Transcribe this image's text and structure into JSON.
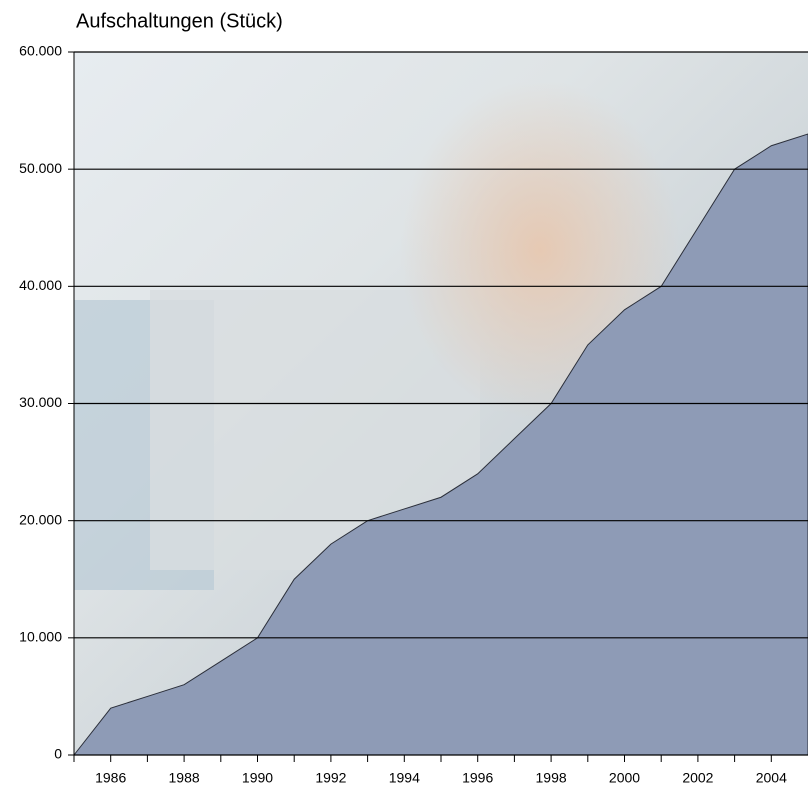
{
  "chart_data": {
    "type": "area",
    "title": "Aufschaltungen (Stück)",
    "x": [
      1985,
      1986,
      1987,
      1988,
      1989,
      1990,
      1991,
      1992,
      1993,
      1994,
      1995,
      1996,
      1997,
      1998,
      1999,
      2000,
      2001,
      2002,
      2003,
      2004,
      2005
    ],
    "values": [
      0,
      4000,
      5000,
      6000,
      8000,
      10000,
      15000,
      18000,
      20000,
      21000,
      22000,
      24000,
      27000,
      30000,
      35000,
      38000,
      40000,
      45000,
      50000,
      52000,
      53000
    ],
    "color": "#8e9bb6",
    "xlim": [
      1985,
      2005
    ],
    "xticks": [
      1986,
      1988,
      1990,
      1992,
      1994,
      1996,
      1998,
      2000,
      2002,
      2004
    ],
    "xminorticks": [
      1985,
      1986,
      1987,
      1988,
      1989,
      1990,
      1991,
      1992,
      1993,
      1994,
      1995,
      1996,
      1997,
      1998,
      1999,
      2000,
      2001,
      2002,
      2003,
      2004
    ],
    "ylim": [
      0,
      60000
    ],
    "yticks": [
      0,
      {
        "value": 10000,
        "label": "10.000"
      },
      {
        "value": 20000,
        "label": "20.000"
      },
      {
        "value": 30000,
        "label": "30.000"
      },
      {
        "value": 40000,
        "label": "40.000"
      },
      {
        "value": 50000,
        "label": "50.000"
      },
      {
        "value": 60000,
        "label": "60.000"
      }
    ],
    "grid": true
  }
}
